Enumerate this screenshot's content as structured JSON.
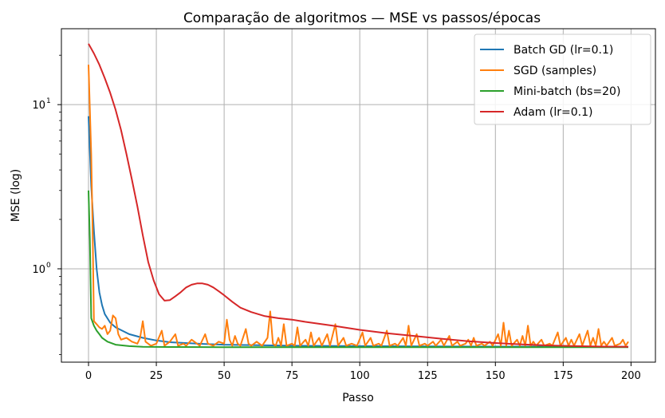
{
  "chart_data": {
    "type": "line",
    "title": "Comparação de algoritmos — MSE vs passos/épocas",
    "xlabel": "Passo",
    "ylabel": "MSE (log)",
    "xlim": [
      -10,
      209
    ],
    "ylim": [
      0.27,
      29
    ],
    "yscale": "log",
    "grid": true,
    "legend_position": "top-right",
    "x_ticks": [
      0,
      25,
      50,
      75,
      100,
      125,
      150,
      175,
      200
    ],
    "y_ticks": [
      {
        "value": 1,
        "label": "10",
        "sup": "0"
      },
      {
        "value": 10,
        "label": "10",
        "sup": "1"
      }
    ],
    "series": [
      {
        "name": "Batch GD (lr=0.1)",
        "color": "#1f77b4",
        "points": [
          [
            0,
            8.5
          ],
          [
            1,
            3.2
          ],
          [
            2,
            1.7
          ],
          [
            3,
            1.0
          ],
          [
            4,
            0.72
          ],
          [
            5,
            0.6
          ],
          [
            6,
            0.53
          ],
          [
            8,
            0.47
          ],
          [
            10,
            0.44
          ],
          [
            15,
            0.4
          ],
          [
            20,
            0.38
          ],
          [
            25,
            0.366
          ],
          [
            30,
            0.357
          ],
          [
            40,
            0.35
          ],
          [
            50,
            0.345
          ],
          [
            75,
            0.34
          ],
          [
            100,
            0.338
          ],
          [
            150,
            0.336
          ],
          [
            199,
            0.335
          ]
        ]
      },
      {
        "name": "SGD (samples)",
        "color": "#ff7f0e",
        "points": [
          [
            0,
            17.5
          ],
          [
            1,
            5.0
          ],
          [
            1.5,
            1.8
          ],
          [
            2,
            0.48
          ],
          [
            3,
            0.46
          ],
          [
            4,
            0.44
          ],
          [
            5,
            0.43
          ],
          [
            6,
            0.45
          ],
          [
            7,
            0.4
          ],
          [
            8,
            0.42
          ],
          [
            9,
            0.52
          ],
          [
            10,
            0.5
          ],
          [
            11,
            0.4
          ],
          [
            12,
            0.37
          ],
          [
            14,
            0.38
          ],
          [
            16,
            0.36
          ],
          [
            18,
            0.35
          ],
          [
            19,
            0.38
          ],
          [
            20,
            0.48
          ],
          [
            21,
            0.36
          ],
          [
            23,
            0.34
          ],
          [
            25,
            0.35
          ],
          [
            27,
            0.42
          ],
          [
            28,
            0.34
          ],
          [
            30,
            0.36
          ],
          [
            32,
            0.4
          ],
          [
            33,
            0.34
          ],
          [
            35,
            0.35
          ],
          [
            36,
            0.34
          ],
          [
            38,
            0.37
          ],
          [
            40,
            0.35
          ],
          [
            41,
            0.34
          ],
          [
            43,
            0.4
          ],
          [
            44,
            0.35
          ],
          [
            46,
            0.34
          ],
          [
            48,
            0.36
          ],
          [
            50,
            0.35
          ],
          [
            51,
            0.49
          ],
          [
            52,
            0.37
          ],
          [
            53,
            0.34
          ],
          [
            54,
            0.39
          ],
          [
            55,
            0.35
          ],
          [
            56,
            0.34
          ],
          [
            58,
            0.43
          ],
          [
            59,
            0.35
          ],
          [
            60,
            0.34
          ],
          [
            62,
            0.36
          ],
          [
            64,
            0.34
          ],
          [
            66,
            0.38
          ],
          [
            67,
            0.55
          ],
          [
            68,
            0.35
          ],
          [
            69,
            0.34
          ],
          [
            70,
            0.38
          ],
          [
            71,
            0.34
          ],
          [
            72,
            0.46
          ],
          [
            73,
            0.34
          ],
          [
            75,
            0.35
          ],
          [
            76,
            0.34
          ],
          [
            77,
            0.44
          ],
          [
            78,
            0.34
          ],
          [
            80,
            0.37
          ],
          [
            81,
            0.34
          ],
          [
            82,
            0.41
          ],
          [
            83,
            0.34
          ],
          [
            85,
            0.38
          ],
          [
            86,
            0.34
          ],
          [
            88,
            0.4
          ],
          [
            89,
            0.34
          ],
          [
            91,
            0.46
          ],
          [
            92,
            0.34
          ],
          [
            94,
            0.38
          ],
          [
            95,
            0.34
          ],
          [
            97,
            0.35
          ],
          [
            99,
            0.34
          ],
          [
            101,
            0.41
          ],
          [
            102,
            0.34
          ],
          [
            104,
            0.38
          ],
          [
            105,
            0.34
          ],
          [
            107,
            0.35
          ],
          [
            108,
            0.34
          ],
          [
            110,
            0.42
          ],
          [
            111,
            0.34
          ],
          [
            113,
            0.35
          ],
          [
            114,
            0.34
          ],
          [
            116,
            0.38
          ],
          [
            117,
            0.34
          ],
          [
            118,
            0.45
          ],
          [
            119,
            0.34
          ],
          [
            121,
            0.4
          ],
          [
            122,
            0.34
          ],
          [
            124,
            0.35
          ],
          [
            125,
            0.34
          ],
          [
            127,
            0.36
          ],
          [
            128,
            0.34
          ],
          [
            130,
            0.37
          ],
          [
            131,
            0.34
          ],
          [
            133,
            0.39
          ],
          [
            134,
            0.34
          ],
          [
            136,
            0.36
          ],
          [
            137,
            0.34
          ],
          [
            139,
            0.35
          ],
          [
            140,
            0.37
          ],
          [
            141,
            0.34
          ],
          [
            142,
            0.38
          ],
          [
            143,
            0.34
          ],
          [
            145,
            0.35
          ],
          [
            146,
            0.34
          ],
          [
            148,
            0.36
          ],
          [
            149,
            0.34
          ],
          [
            151,
            0.4
          ],
          [
            152,
            0.34
          ],
          [
            153,
            0.47
          ],
          [
            154,
            0.34
          ],
          [
            155,
            0.42
          ],
          [
            156,
            0.34
          ],
          [
            158,
            0.37
          ],
          [
            159,
            0.34
          ],
          [
            160,
            0.39
          ],
          [
            161,
            0.34
          ],
          [
            162,
            0.45
          ],
          [
            163,
            0.34
          ],
          [
            164,
            0.36
          ],
          [
            165,
            0.34
          ],
          [
            167,
            0.37
          ],
          [
            168,
            0.34
          ],
          [
            170,
            0.35
          ],
          [
            171,
            0.34
          ],
          [
            173,
            0.41
          ],
          [
            174,
            0.34
          ],
          [
            176,
            0.38
          ],
          [
            177,
            0.34
          ],
          [
            178,
            0.37
          ],
          [
            179,
            0.34
          ],
          [
            181,
            0.4
          ],
          [
            182,
            0.34
          ],
          [
            184,
            0.42
          ],
          [
            185,
            0.34
          ],
          [
            186,
            0.38
          ],
          [
            187,
            0.34
          ],
          [
            188,
            0.43
          ],
          [
            189,
            0.34
          ],
          [
            190,
            0.36
          ],
          [
            191,
            0.34
          ],
          [
            193,
            0.38
          ],
          [
            194,
            0.34
          ],
          [
            196,
            0.35
          ],
          [
            197,
            0.37
          ],
          [
            198,
            0.34
          ],
          [
            199,
            0.36
          ]
        ]
      },
      {
        "name": "Mini-batch (bs=20)",
        "color": "#2ca02c",
        "points": [
          [
            0,
            3.0
          ],
          [
            0.5,
            1.5
          ],
          [
            1,
            0.5
          ],
          [
            2,
            0.45
          ],
          [
            3,
            0.42
          ],
          [
            4,
            0.4
          ],
          [
            5,
            0.38
          ],
          [
            7,
            0.36
          ],
          [
            10,
            0.345
          ],
          [
            15,
            0.338
          ],
          [
            20,
            0.335
          ],
          [
            30,
            0.334
          ],
          [
            50,
            0.333
          ],
          [
            100,
            0.333
          ],
          [
            150,
            0.333
          ],
          [
            199,
            0.333
          ]
        ]
      },
      {
        "name": "Adam (lr=0.1)",
        "color": "#d62728",
        "points": [
          [
            0,
            23.5
          ],
          [
            2,
            20.5
          ],
          [
            4,
            17.5
          ],
          [
            6,
            14.5
          ],
          [
            8,
            11.8
          ],
          [
            10,
            9.3
          ],
          [
            12,
            7.0
          ],
          [
            14,
            5.0
          ],
          [
            16,
            3.5
          ],
          [
            18,
            2.4
          ],
          [
            20,
            1.6
          ],
          [
            22,
            1.1
          ],
          [
            24,
            0.85
          ],
          [
            26,
            0.7
          ],
          [
            28,
            0.64
          ],
          [
            30,
            0.645
          ],
          [
            32,
            0.68
          ],
          [
            34,
            0.72
          ],
          [
            36,
            0.77
          ],
          [
            38,
            0.8
          ],
          [
            40,
            0.815
          ],
          [
            42,
            0.815
          ],
          [
            44,
            0.8
          ],
          [
            46,
            0.77
          ],
          [
            48,
            0.73
          ],
          [
            50,
            0.69
          ],
          [
            53,
            0.63
          ],
          [
            56,
            0.58
          ],
          [
            60,
            0.545
          ],
          [
            65,
            0.515
          ],
          [
            70,
            0.5
          ],
          [
            75,
            0.49
          ],
          [
            80,
            0.475
          ],
          [
            90,
            0.45
          ],
          [
            100,
            0.425
          ],
          [
            110,
            0.405
          ],
          [
            120,
            0.39
          ],
          [
            130,
            0.375
          ],
          [
            140,
            0.362
          ],
          [
            150,
            0.353
          ],
          [
            160,
            0.346
          ],
          [
            170,
            0.341
          ],
          [
            180,
            0.338
          ],
          [
            190,
            0.336
          ],
          [
            199,
            0.335
          ]
        ]
      }
    ]
  }
}
